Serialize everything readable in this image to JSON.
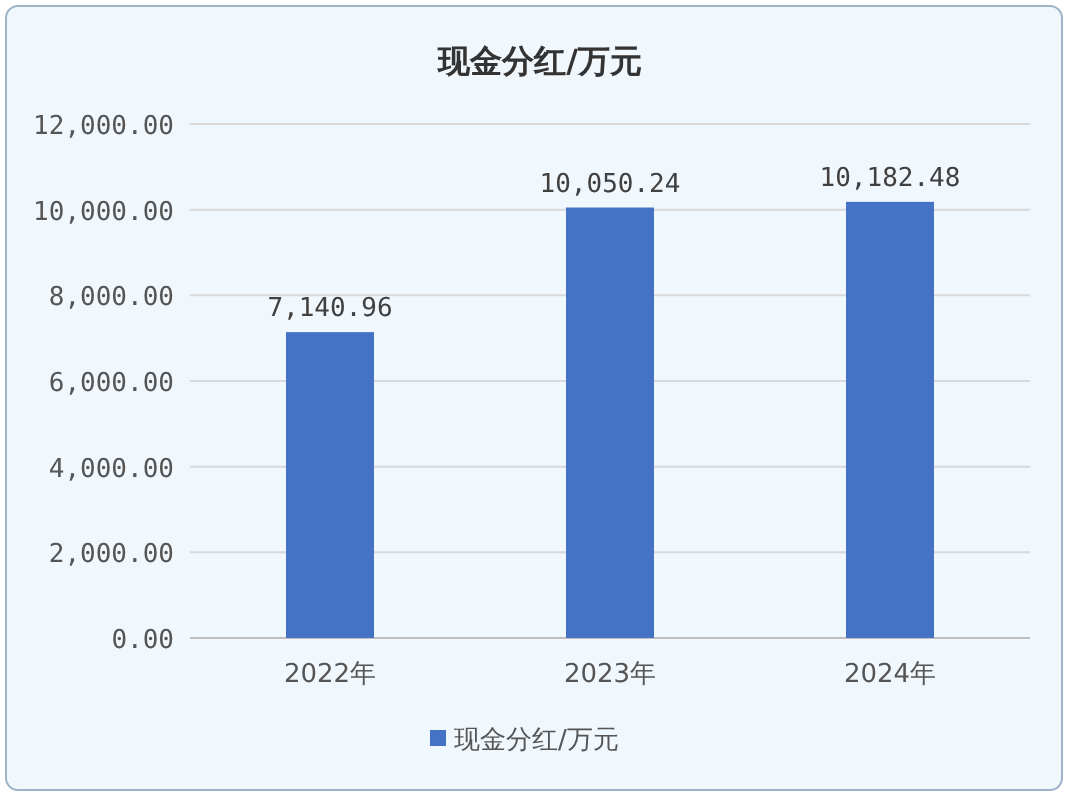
{
  "chart_data": {
    "type": "bar",
    "title": "现金分红/万元",
    "categories": [
      "2022年",
      "2023年",
      "2024年"
    ],
    "series": [
      {
        "name": "现金分红/万元",
        "color": "#4472c4",
        "values": [
          7140.96,
          10050.24,
          10182.48
        ],
        "value_labels": [
          "7,140.96",
          "10,050.24",
          "10,182.48"
        ]
      }
    ],
    "ylim": [
      0,
      12000
    ],
    "yticks": [
      {
        "value": 0,
        "label": "0.00"
      },
      {
        "value": 2000,
        "label": "2,000.00"
      },
      {
        "value": 4000,
        "label": "4,000.00"
      },
      {
        "value": 6000,
        "label": "6,000.00"
      },
      {
        "value": 8000,
        "label": "8,000.00"
      },
      {
        "value": 10000,
        "label": "10,000.00"
      },
      {
        "value": 12000,
        "label": "12,000.00"
      }
    ],
    "grid": "y",
    "legend": "bottom"
  }
}
